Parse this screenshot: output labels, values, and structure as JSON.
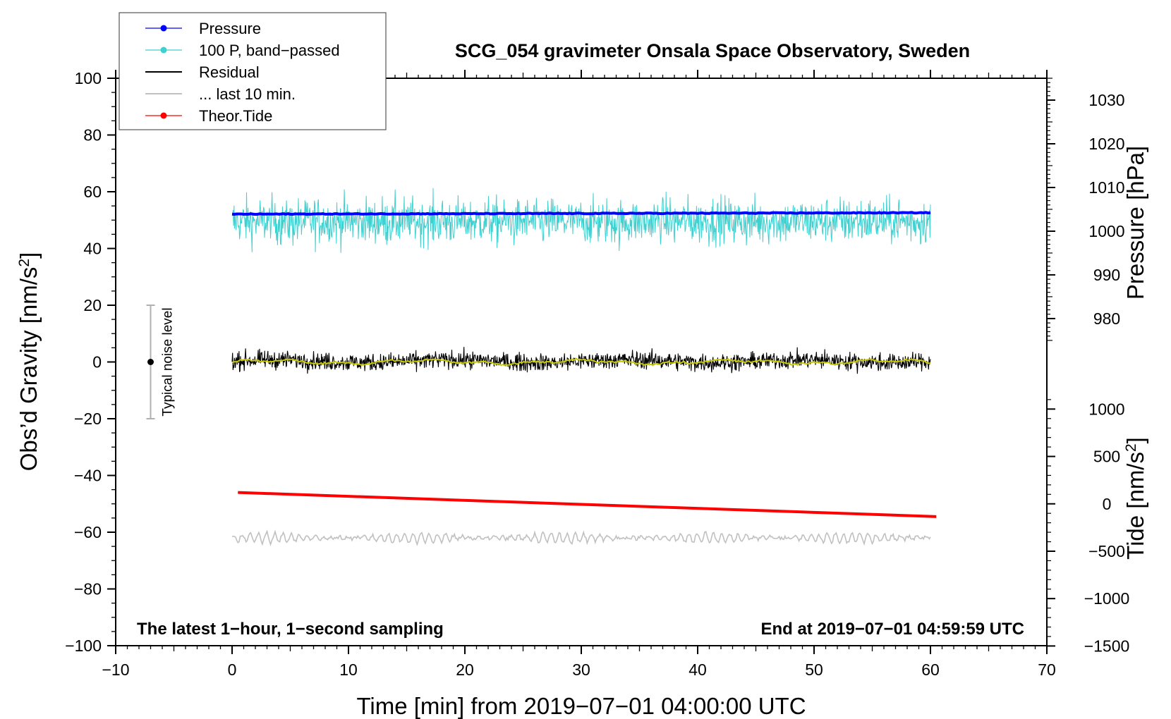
{
  "chart_data": {
    "type": "line",
    "title": "SCG_054 gravimeter Onsala Space Observatory, Sweden",
    "xlabel": "Time [min] from 2019−07−01 04:00:00 UTC",
    "ylabel_main": "Obs’d Gravity [nm/s",
    "ylabel_pressure": "Pressure [hPa]",
    "ylabel_tide": "Tide [nm/s",
    "superscript": "2",
    "label_close": "]",
    "xlim": [
      -10,
      70
    ],
    "ylim": [
      -100,
      100
    ],
    "x_ticks": [
      "−10",
      "0",
      "10",
      "20",
      "30",
      "40",
      "50",
      "60",
      "70"
    ],
    "x_tick_values": [
      -10,
      0,
      10,
      20,
      30,
      40,
      50,
      60,
      70
    ],
    "y_ticks": [
      "100",
      "80",
      "60",
      "40",
      "20",
      "0",
      "−20",
      "−40",
      "−60",
      "−80",
      "−100"
    ],
    "y_tick_values": [
      100,
      80,
      60,
      40,
      20,
      0,
      -20,
      -40,
      -60,
      -80,
      -100
    ],
    "pressure_axis": {
      "labels": [
        "1030",
        "1020",
        "1010",
        "1000",
        "990",
        "980"
      ],
      "values": [
        1030,
        1020,
        1010,
        1000,
        990,
        980
      ],
      "hpa_to_gravity": {
        "ref_hpa": 1000,
        "ref_gravity": 46.1,
        "gravity_per_hpa": 1.54
      }
    },
    "tide_axis": {
      "labels": [
        "1000",
        "500",
        "0",
        "−500",
        "−1000",
        "−1500"
      ],
      "values": [
        1000,
        500,
        0,
        -500,
        -1000,
        -1500
      ],
      "tide_to_gravity": {
        "ref_tide": 0,
        "ref_gravity": -50.0,
        "gravity_per_tide": 0.0334
      }
    },
    "series": [
      {
        "name": "Pressure",
        "color": "#0000ff",
        "x_range": [
          0,
          60
        ],
        "start": 52.1,
        "end": 52.6,
        "noise": 0.25
      },
      {
        "name": "100 P, band−passed",
        "color": "#40d0d0",
        "x_range": [
          0,
          60
        ],
        "center": 49.5,
        "amplitude": 5.5,
        "min": 31,
        "max": 63
      },
      {
        "name": "Residual",
        "color": "#000000",
        "x_range": [
          0,
          60
        ],
        "center": 0.3,
        "amplitude": 2.2,
        "min": -6,
        "max": 6
      },
      {
        "name": "... last 10 min.",
        "color": "#c0c0c0",
        "x_range": [
          0,
          60
        ],
        "center": -62.0,
        "amplitude": 1.5,
        "min": -65.5,
        "max": -57.5
      },
      {
        "name": "Theor.Tide",
        "color": "#ff0000",
        "x_range": [
          0.5,
          60.5
        ],
        "start": -46.0,
        "end": -54.5
      },
      {
        "name": "smoothed residual",
        "color": "#c8c800",
        "x_range": [
          0,
          60
        ],
        "center": 0.0,
        "amplitude": 0.7
      }
    ],
    "noise_bar": {
      "label": "Typical noise level",
      "x": -7,
      "center": 0,
      "low": -20,
      "high": 20
    },
    "legend": {
      "position": "top-left",
      "entries": [
        {
          "label": "Pressure",
          "color": "#0000ff",
          "marker": true
        },
        {
          "label": "100 P, band−passed",
          "color": "#40d0d0",
          "marker": true
        },
        {
          "label": "Residual",
          "color": "#000000",
          "marker": false
        },
        {
          "label": "... last 10 min.",
          "color": "#c0c0c0",
          "marker": false
        },
        {
          "label": "Theor.Tide",
          "color": "#ff0000",
          "marker": true
        }
      ]
    },
    "annotation_left": "The latest 1−hour, 1−second sampling",
    "annotation_right": "End at 2019−07−01 04:59:59 UTC"
  }
}
